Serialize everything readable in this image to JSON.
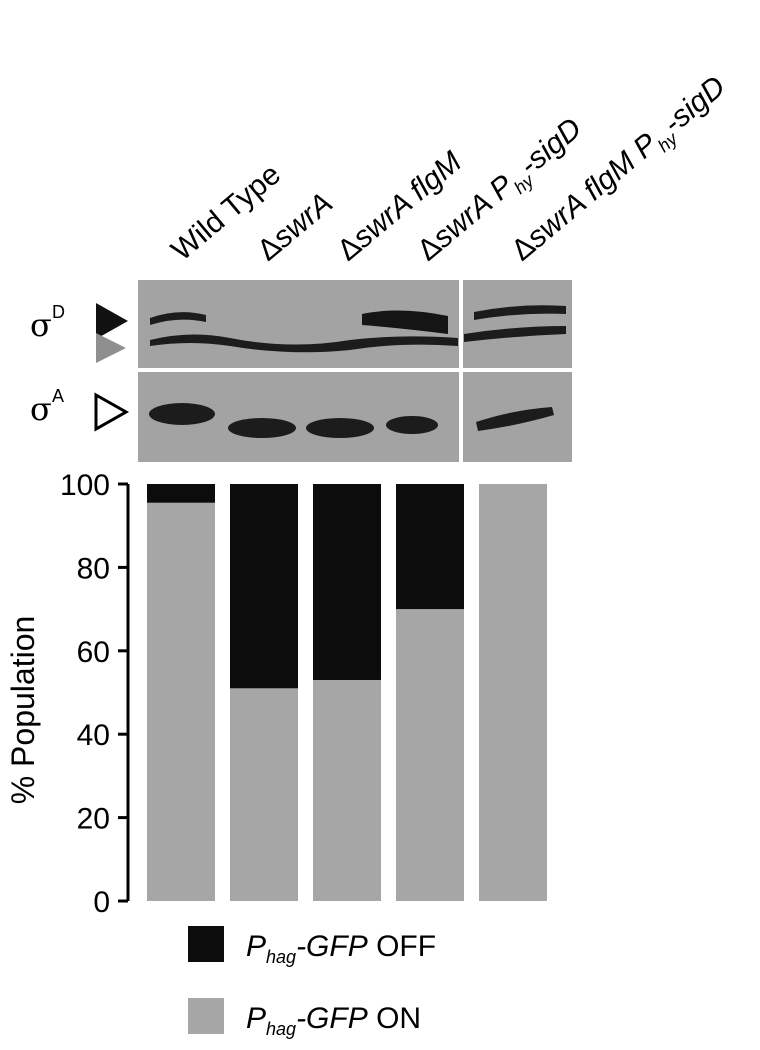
{
  "blot": {
    "lane_labels": [
      {
        "prefix": "",
        "italic": "",
        "rest": "Wild Type",
        "sub": "",
        "tail": ""
      },
      {
        "prefix": "Δ",
        "italic": "swrA",
        "rest": "",
        "sub": "",
        "tail": ""
      },
      {
        "prefix": "Δ",
        "italic": "swrA flgM",
        "rest": "",
        "sub": "",
        "tail": ""
      },
      {
        "prefix": "Δ",
        "italic": "swrA P",
        "rest": "",
        "sub": "hy",
        "tail": "-sigD"
      },
      {
        "prefix": "Δ",
        "italic": "swrA flgM P",
        "rest": "",
        "sub": "hy",
        "tail": "-sigD"
      }
    ],
    "row_labels": [
      {
        "symbol": "σ",
        "superscript": "D"
      },
      {
        "symbol": "σ",
        "superscript": "A"
      }
    ],
    "colors": {
      "background": "#a3a3a3",
      "band": "#1c1c1c",
      "arrow_dark": "#111111",
      "arrow_gray": "#8f8f8f"
    }
  },
  "chart_data": {
    "type": "bar",
    "stacked": true,
    "categories": [
      "Wild Type",
      "ΔswrA",
      "ΔswrA flgM",
      "ΔswrA Phy-sigD",
      "ΔswrA flgM Phy-sigD"
    ],
    "series": [
      {
        "name": "Phag-GFP ON",
        "color": "#a6a6a6",
        "values": [
          95.5,
          51,
          53,
          70,
          100
        ]
      },
      {
        "name": "Phag-GFP OFF",
        "color": "#0c0c0c",
        "values": [
          4.5,
          49,
          47,
          30,
          0
        ]
      }
    ],
    "ylabel": "% Population",
    "ylim": [
      0,
      100
    ],
    "yticks": [
      0,
      20,
      40,
      60,
      80,
      100
    ],
    "grid": false,
    "legend_position": "bottom",
    "legend": [
      {
        "sub": "hag",
        "rest": "OFF",
        "color": "#0c0c0c"
      },
      {
        "sub": "hag",
        "rest": "ON",
        "color": "#a6a6a6"
      }
    ]
  }
}
